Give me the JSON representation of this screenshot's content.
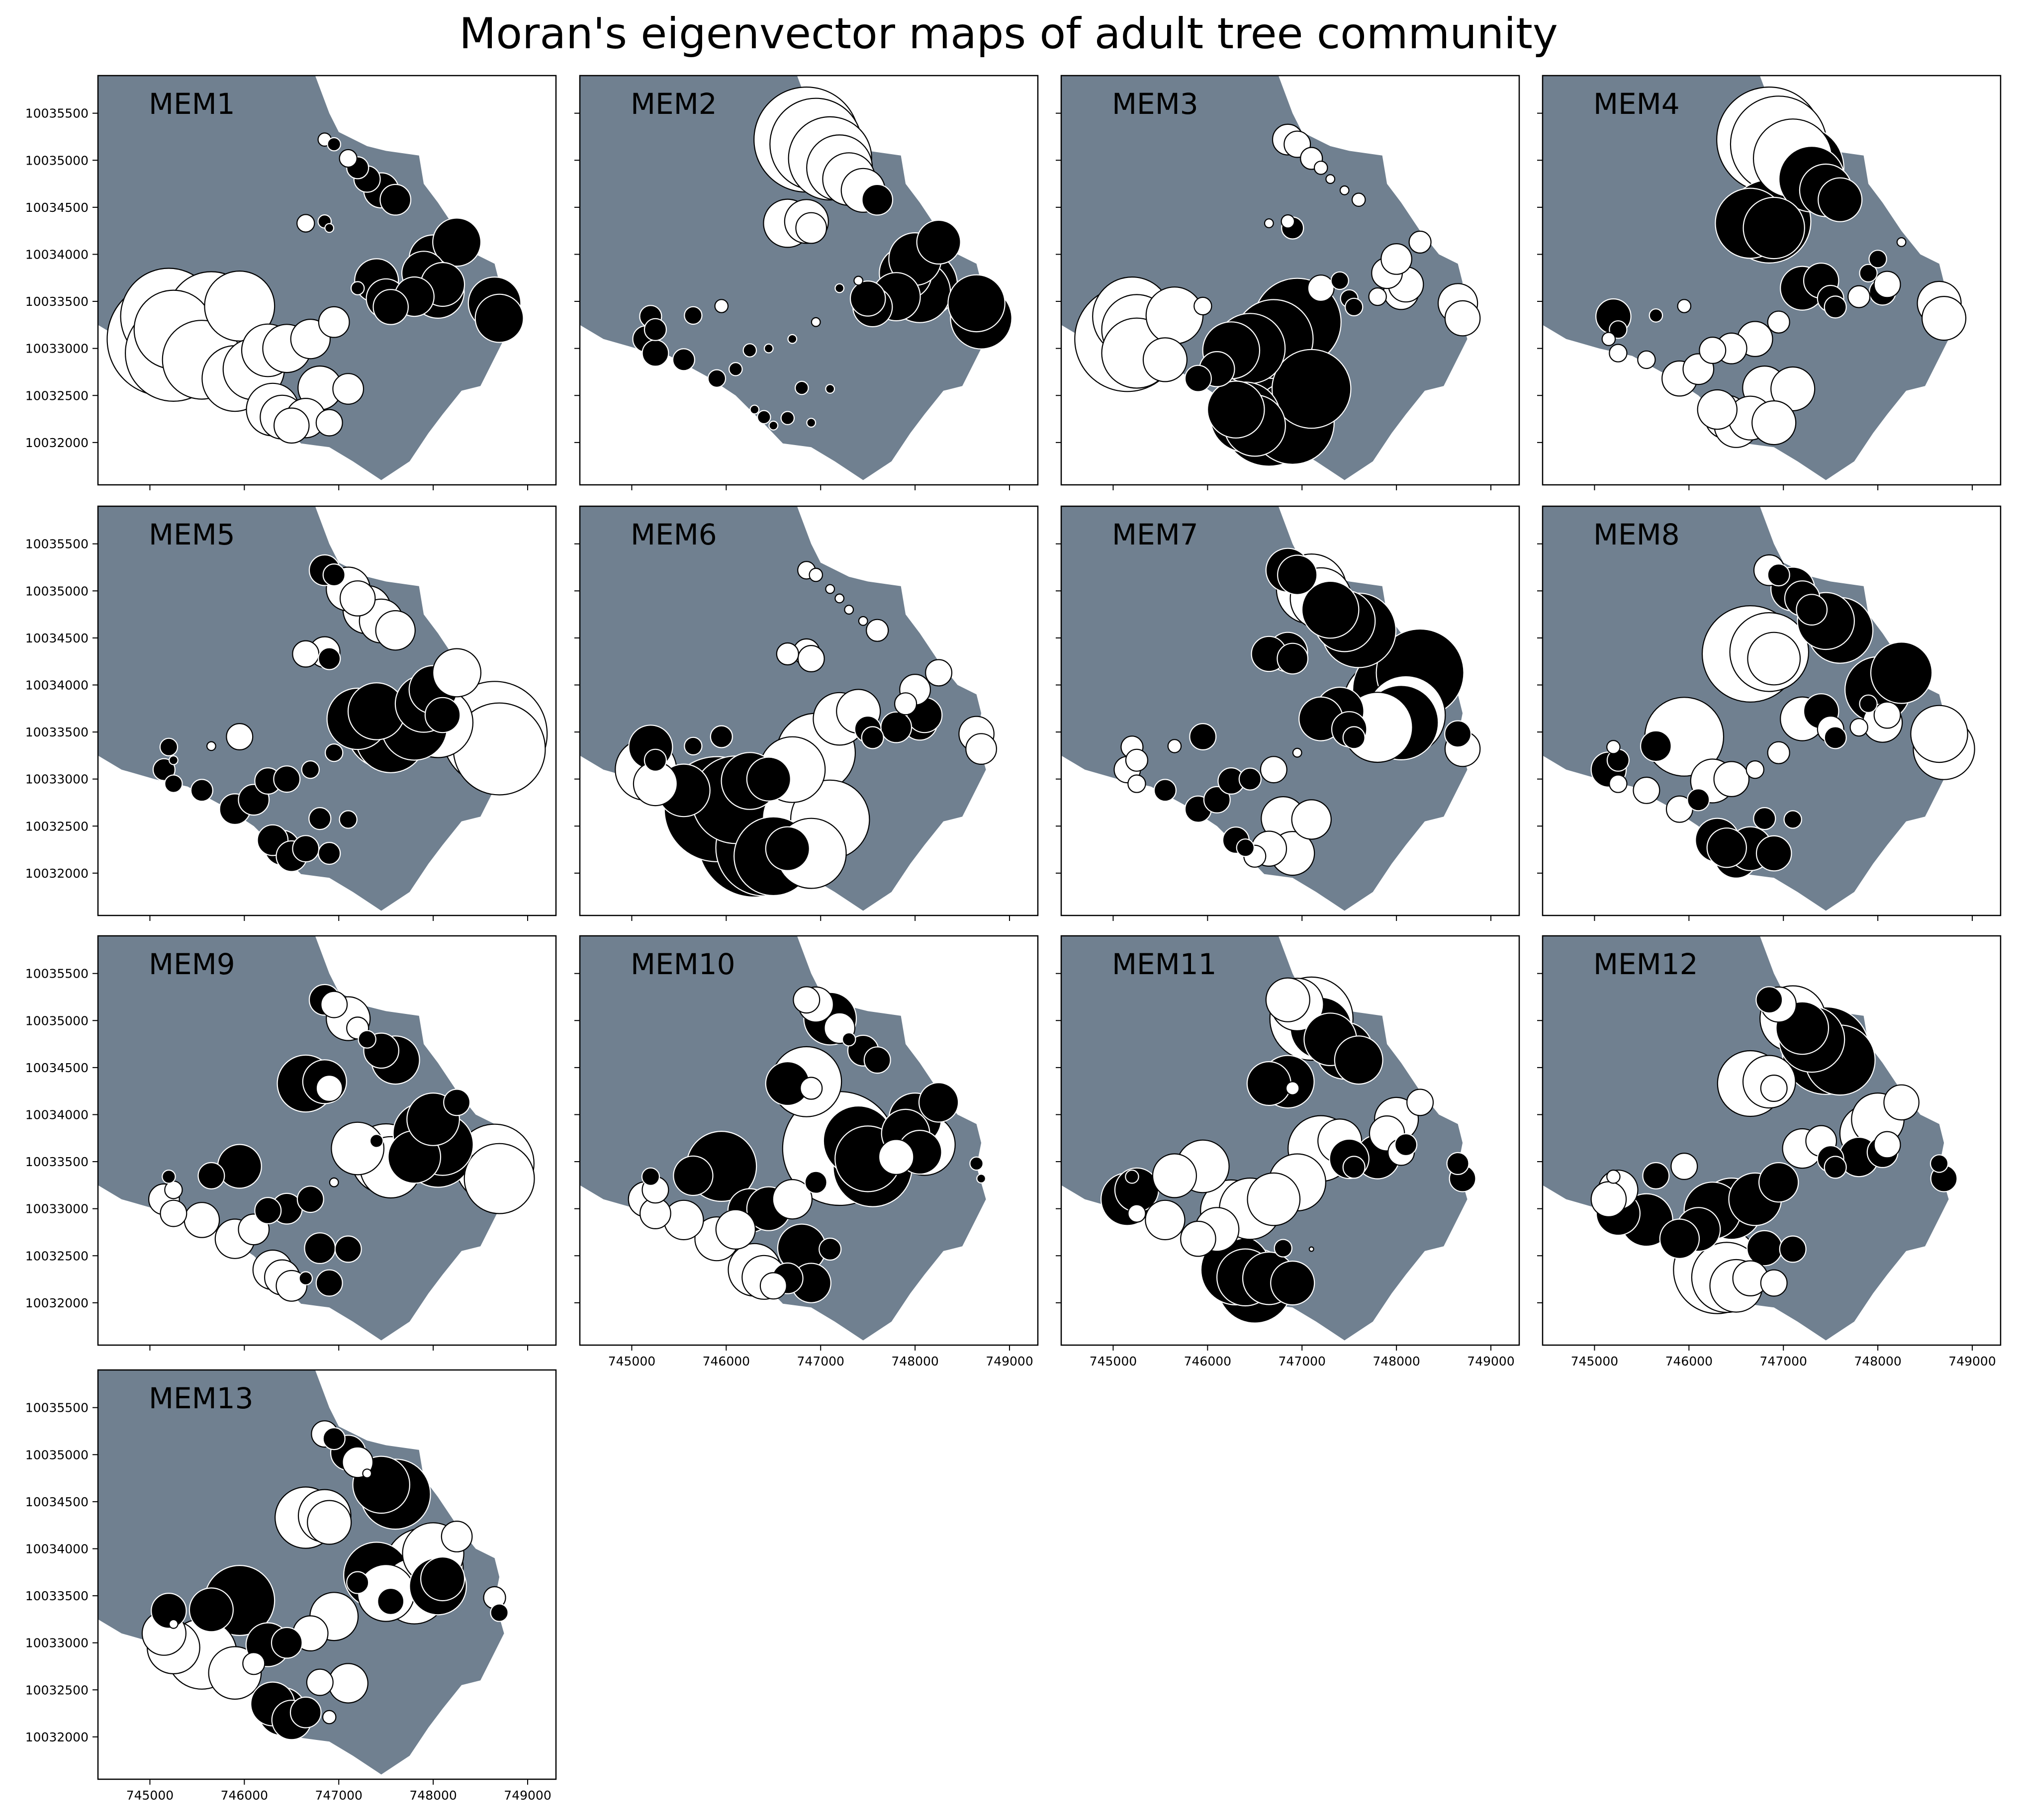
{
  "figure": {
    "title": "Moran's eigenvector maps of adult tree community"
  },
  "chart_data": {
    "type": "scatter",
    "subtype": "bubble map",
    "grid": false,
    "xlim": [
      744450,
      749300
    ],
    "ylim": [
      10031550,
      10035900
    ],
    "x_ticks": [
      745000,
      746000,
      747000,
      748000,
      749000
    ],
    "y_ticks": [
      10032000,
      10032500,
      10033000,
      10033500,
      10034000,
      10034500,
      10035000,
      10035500
    ],
    "x_tick_labels": [
      "745000",
      "746000",
      "747000",
      "748000",
      "749000"
    ],
    "y_tick_labels": [
      "10032000",
      "10032500",
      "10033000",
      "10033500",
      "10034000",
      "10034500",
      "10035000",
      "10035500"
    ],
    "colors": {
      "region": "#708090",
      "positive": "#ffffff",
      "negative": "#000000",
      "edge": "#000000",
      "frame": "#000000"
    },
    "region_polygon": [
      [
        744450,
        10033250
      ],
      [
        744700,
        10033100
      ],
      [
        745050,
        10033000
      ],
      [
        745400,
        10032920
      ],
      [
        745800,
        10032700
      ],
      [
        746100,
        10032500
      ],
      [
        746400,
        10032200
      ],
      [
        746600,
        10031990
      ],
      [
        746900,
        10031950
      ],
      [
        747150,
        10031800
      ],
      [
        747450,
        10031600
      ],
      [
        747750,
        10031800
      ],
      [
        747950,
        10032100
      ],
      [
        748100,
        10032300
      ],
      [
        748300,
        10032550
      ],
      [
        748500,
        10032600
      ],
      [
        748650,
        10032900
      ],
      [
        748750,
        10033100
      ],
      [
        748650,
        10033450
      ],
      [
        748700,
        10033700
      ],
      [
        748650,
        10033900
      ],
      [
        748450,
        10034000
      ],
      [
        748250,
        10034250
      ],
      [
        748050,
        10034550
      ],
      [
        747900,
        10034750
      ],
      [
        747850,
        10035050
      ],
      [
        747500,
        10035100
      ],
      [
        747300,
        10035150
      ],
      [
        747000,
        10035300
      ],
      [
        746900,
        10035500
      ],
      [
        746750,
        10035900
      ],
      [
        744450,
        10035900
      ]
    ],
    "sites": [
      [
        746850,
        10035220
      ],
      [
        746950,
        10035170
      ],
      [
        747100,
        10035020
      ],
      [
        747200,
        10034920
      ],
      [
        747300,
        10034800
      ],
      [
        747450,
        10034680
      ],
      [
        747600,
        10034580
      ],
      [
        746650,
        10034330
      ],
      [
        746850,
        10034350
      ],
      [
        746900,
        10034280
      ],
      [
        747200,
        10033640
      ],
      [
        747400,
        10033720
      ],
      [
        747500,
        10033530
      ],
      [
        747550,
        10033440
      ],
      [
        747800,
        10033550
      ],
      [
        747900,
        10033800
      ],
      [
        748000,
        10033950
      ],
      [
        748050,
        10033600
      ],
      [
        748100,
        10033680
      ],
      [
        748250,
        10034130
      ],
      [
        748650,
        10033480
      ],
      [
        748700,
        10033320
      ],
      [
        745200,
        10033340
      ],
      [
        745250,
        10033200
      ],
      [
        745650,
        10033350
      ],
      [
        745950,
        10033450
      ],
      [
        745150,
        10033100
      ],
      [
        745250,
        10032950
      ],
      [
        745550,
        10032880
      ],
      [
        745900,
        10032680
      ],
      [
        746100,
        10032780
      ],
      [
        746250,
        10032980
      ],
      [
        746450,
        10033000
      ],
      [
        746700,
        10033100
      ],
      [
        746950,
        10033280
      ],
      [
        746800,
        10032580
      ],
      [
        747100,
        10032570
      ],
      [
        746300,
        10032350
      ],
      [
        746400,
        10032270
      ],
      [
        746500,
        10032180
      ],
      [
        746650,
        10032260
      ],
      [
        746900,
        10032210
      ]
    ],
    "panels": [
      {
        "name": "MEM1",
        "values": [
          0.3,
          -0.3,
          0.4,
          -0.5,
          -0.6,
          -0.8,
          -0.7,
          0.4,
          -0.3,
          -0.2,
          -0.3,
          -1.0,
          -0.9,
          -0.8,
          -0.9,
          -1.0,
          -1.1,
          -1.2,
          -1.0,
          -1.1,
          -1.2,
          -1.1,
          2.2,
          1.8,
          2.0,
          1.6,
          2.6,
          2.2,
          1.8,
          1.5,
          1.4,
          1.2,
          1.1,
          0.9,
          0.7,
          1.0,
          0.7,
          1.2,
          1.0,
          0.8,
          0.9,
          0.6
        ]
      },
      {
        "name": "MEM2",
        "values": [
          2.4,
          2.1,
          1.9,
          1.5,
          1.2,
          1.0,
          -0.7,
          1.1,
          1.0,
          0.7,
          -0.2,
          0.2,
          -0.8,
          -0.9,
          -1.1,
          -1.2,
          -1.2,
          -1.4,
          -1.5,
          -1.0,
          -1.3,
          -1.4,
          -0.5,
          -0.5,
          -0.4,
          0.3,
          -0.6,
          -0.6,
          -0.5,
          -0.4,
          -0.3,
          -0.3,
          -0.2,
          -0.2,
          0.2,
          -0.3,
          -0.2,
          -0.2,
          -0.3,
          -0.2,
          -0.3,
          -0.2
        ]
      },
      {
        "name": "MEM3",
        "values": [
          0.7,
          0.6,
          0.5,
          0.3,
          0.2,
          0.2,
          0.3,
          0.2,
          0.3,
          -0.5,
          0.6,
          -0.4,
          -0.4,
          -0.4,
          0.4,
          0.7,
          0.7,
          0.8,
          0.8,
          0.5,
          0.9,
          0.8,
          1.8,
          1.6,
          1.3,
          0.4,
          2.4,
          1.6,
          1.0,
          -0.6,
          -0.8,
          -1.3,
          -1.6,
          -1.8,
          -2.0,
          -2.6,
          -1.8,
          -1.3,
          -1.6,
          -1.4,
          -2.2,
          -1.9
        ]
      },
      {
        "name": "MEM4",
        "values": [
          2.4,
          2.2,
          1.8,
          -1.9,
          -1.5,
          -1.2,
          -1.0,
          -1.6,
          -1.9,
          -1.4,
          -1.0,
          -0.8,
          -0.6,
          -0.5,
          0.5,
          -0.4,
          -0.4,
          -0.6,
          0.6,
          0.2,
          1.0,
          1.0,
          -0.8,
          -0.4,
          -0.3,
          0.3,
          0.3,
          0.4,
          0.4,
          0.8,
          0.7,
          0.6,
          0.7,
          0.8,
          0.5,
          1.0,
          1.0,
          0.9,
          1.0,
          1.0,
          1.0,
          1.0
        ]
      },
      {
        "name": "MEM5",
        "values": [
          -0.7,
          -0.5,
          1.0,
          0.8,
          1.1,
          1.0,
          0.9,
          0.6,
          0.7,
          -0.5,
          -1.4,
          -1.3,
          -1.8,
          -1.6,
          -1.5,
          -1.3,
          -1.1,
          1.6,
          -0.8,
          1.1,
          2.4,
          2.1,
          -0.4,
          -0.2,
          0.2,
          0.6,
          -0.5,
          -0.4,
          -0.5,
          -0.7,
          -0.7,
          -0.6,
          -0.6,
          -0.4,
          -0.4,
          -0.5,
          -0.4,
          -0.7,
          -0.8,
          -0.7,
          -0.6,
          -0.5
        ]
      },
      {
        "name": "MEM6",
        "values": [
          0.4,
          0.3,
          0.2,
          0.2,
          0.2,
          0.2,
          0.5,
          0.5,
          0.6,
          0.6,
          1.2,
          1.0,
          -0.6,
          -0.5,
          -0.7,
          0.5,
          0.7,
          -0.8,
          -0.8,
          0.6,
          0.8,
          0.7,
          -1.0,
          -0.5,
          -0.4,
          -0.5,
          1.4,
          1.0,
          -1.2,
          -2.4,
          -2.0,
          -1.3,
          -1.0,
          1.5,
          1.8,
          1.8,
          1.8,
          -2.6,
          -2.2,
          -1.8,
          -1.0,
          1.6
        ]
      },
      {
        "name": "MEM7",
        "values": [
          -1.0,
          -0.9,
          1.6,
          1.4,
          -1.3,
          -1.4,
          -1.7,
          -0.8,
          -0.9,
          -0.7,
          -1.0,
          -1.1,
          -0.8,
          -0.5,
          1.6,
          2.0,
          -2.0,
          -1.7,
          1.8,
          -2.0,
          -0.6,
          0.8,
          0.5,
          0.5,
          0.3,
          -0.6,
          0.6,
          0.4,
          -0.5,
          -0.6,
          -0.6,
          -0.6,
          -0.5,
          0.6,
          0.2,
          1.0,
          0.9,
          -0.6,
          -0.4,
          0.5,
          0.8,
          1.0
        ]
      },
      {
        "name": "MEM8",
        "values": [
          0.7,
          -0.5,
          -1.0,
          -0.8,
          -0.7,
          -1.3,
          -1.5,
          2.2,
          1.8,
          1.2,
          1.0,
          -0.8,
          0.6,
          -0.5,
          0.4,
          -0.4,
          -1.5,
          0.9,
          0.6,
          -1.4,
          1.3,
          1.4,
          0.3,
          -0.5,
          -0.7,
          1.8,
          -0.8,
          0.4,
          0.6,
          0.6,
          -0.5,
          1.0,
          0.8,
          0.4,
          0.5,
          -0.5,
          -0.4,
          -1.0,
          -0.9,
          -1.0,
          -1.0,
          -0.8
        ]
      },
      {
        "name": "MEM9",
        "values": [
          -0.7,
          0.6,
          1.0,
          0.5,
          -0.4,
          -0.8,
          -1.1,
          -1.3,
          -1.0,
          0.6,
          1.2,
          -0.3,
          1.6,
          1.4,
          -1.2,
          -1.4,
          -1.2,
          -1.6,
          -1.4,
          -0.6,
          1.8,
          1.6,
          -0.3,
          0.4,
          -0.6,
          -1.0,
          0.7,
          0.6,
          0.8,
          0.9,
          0.7,
          -0.6,
          -0.7,
          -0.6,
          0.2,
          -0.7,
          -0.6,
          0.9,
          0.8,
          0.7,
          -0.3,
          -0.6
        ]
      },
      {
        "name": "MEM10",
        "values": [
          0.6,
          0.8,
          -1.2,
          0.7,
          -0.3,
          -0.7,
          -0.6,
          -1.0,
          1.6,
          0.5,
          2.6,
          -1.6,
          -1.5,
          -1.8,
          0.8,
          -1.1,
          -1.2,
          -1.0,
          1.4,
          -0.9,
          -0.3,
          -0.2,
          -0.4,
          0.6,
          -0.9,
          -1.6,
          0.8,
          0.7,
          0.9,
          1.0,
          0.9,
          -1.0,
          -1.0,
          0.9,
          -0.5,
          -1.1,
          -0.5,
          1.2,
          1.0,
          0.6,
          -0.7,
          -0.9
        ]
      },
      {
        "name": "MEM11",
        "values": [
          1.0,
          1.2,
          1.9,
          -1.4,
          -1.2,
          -1.3,
          -1.1,
          -1.0,
          -1.2,
          0.3,
          1.5,
          1.0,
          -0.9,
          -0.5,
          -1.0,
          0.8,
          1.0,
          0.6,
          -0.5,
          0.6,
          -0.5,
          -0.6,
          -0.3,
          -1.0,
          1.0,
          1.2,
          -1.2,
          0.4,
          0.9,
          0.8,
          1.0,
          1.4,
          1.4,
          1.2,
          1.3,
          -0.4,
          0.1,
          -1.6,
          -1.3,
          -1.7,
          -1.2,
          -1.0
        ]
      },
      {
        "name": "MEM12",
        "values": [
          -0.6,
          0.8,
          1.5,
          -1.2,
          -1.5,
          -2.0,
          -1.6,
          1.5,
          1.2,
          0.6,
          0.9,
          0.7,
          -0.6,
          -0.5,
          -0.9,
          1.3,
          1.2,
          -0.7,
          0.6,
          0.8,
          -0.4,
          -0.6,
          0.3,
          0.9,
          -0.6,
          0.6,
          0.8,
          -1.0,
          -1.2,
          -0.9,
          -1.0,
          -1.3,
          -1.4,
          -1.2,
          -0.9,
          -0.8,
          -0.6,
          2.0,
          1.6,
          1.2,
          0.8,
          0.6
        ]
      },
      {
        "name": "MEM13",
        "values": [
          0.6,
          -0.5,
          -0.8,
          0.7,
          0.2,
          -1.3,
          -1.6,
          1.4,
          1.2,
          1.0,
          -0.5,
          -1.5,
          1.3,
          -0.6,
          1.5,
          1.8,
          1.4,
          -1.3,
          -1.0,
          0.7,
          0.5,
          -0.4,
          -0.8,
          0.2,
          -1.0,
          -1.6,
          1.0,
          1.2,
          1.6,
          1.2,
          0.5,
          -1.0,
          -0.7,
          0.8,
          1.1,
          0.6,
          0.9,
          -1.0,
          -1.1,
          -0.9,
          -0.7,
          0.3
        ]
      }
    ]
  }
}
